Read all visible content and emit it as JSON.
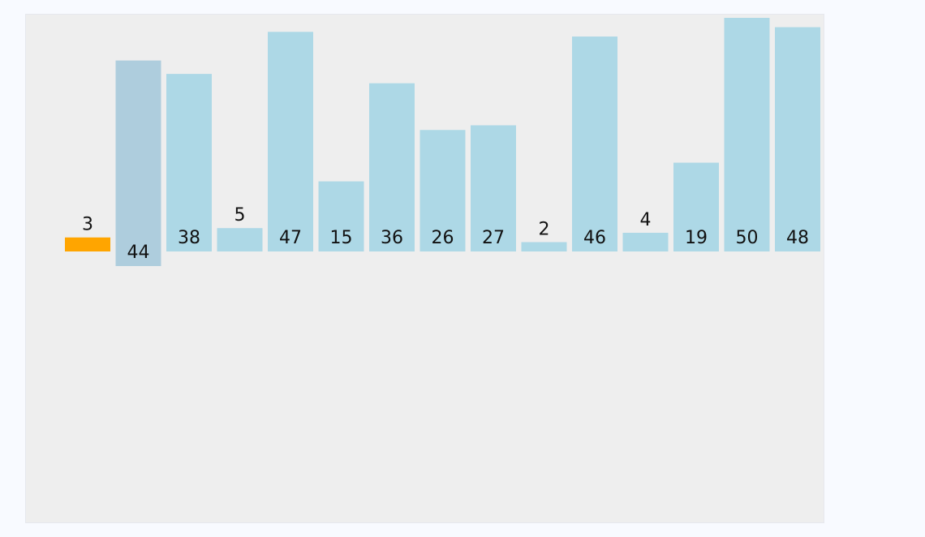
{
  "chart_data": {
    "type": "bar",
    "values": [
      3,
      44,
      38,
      5,
      47,
      15,
      36,
      26,
      27,
      2,
      46,
      4,
      19,
      50,
      48
    ],
    "colors": [
      "#ffa500",
      "#aecddd",
      "#add8e6",
      "#add8e6",
      "#add8e6",
      "#add8e6",
      "#add8e6",
      "#add8e6",
      "#add8e6",
      "#add8e6",
      "#add8e6",
      "#add8e6",
      "#add8e6",
      "#add8e6",
      "#add8e6"
    ]
  }
}
